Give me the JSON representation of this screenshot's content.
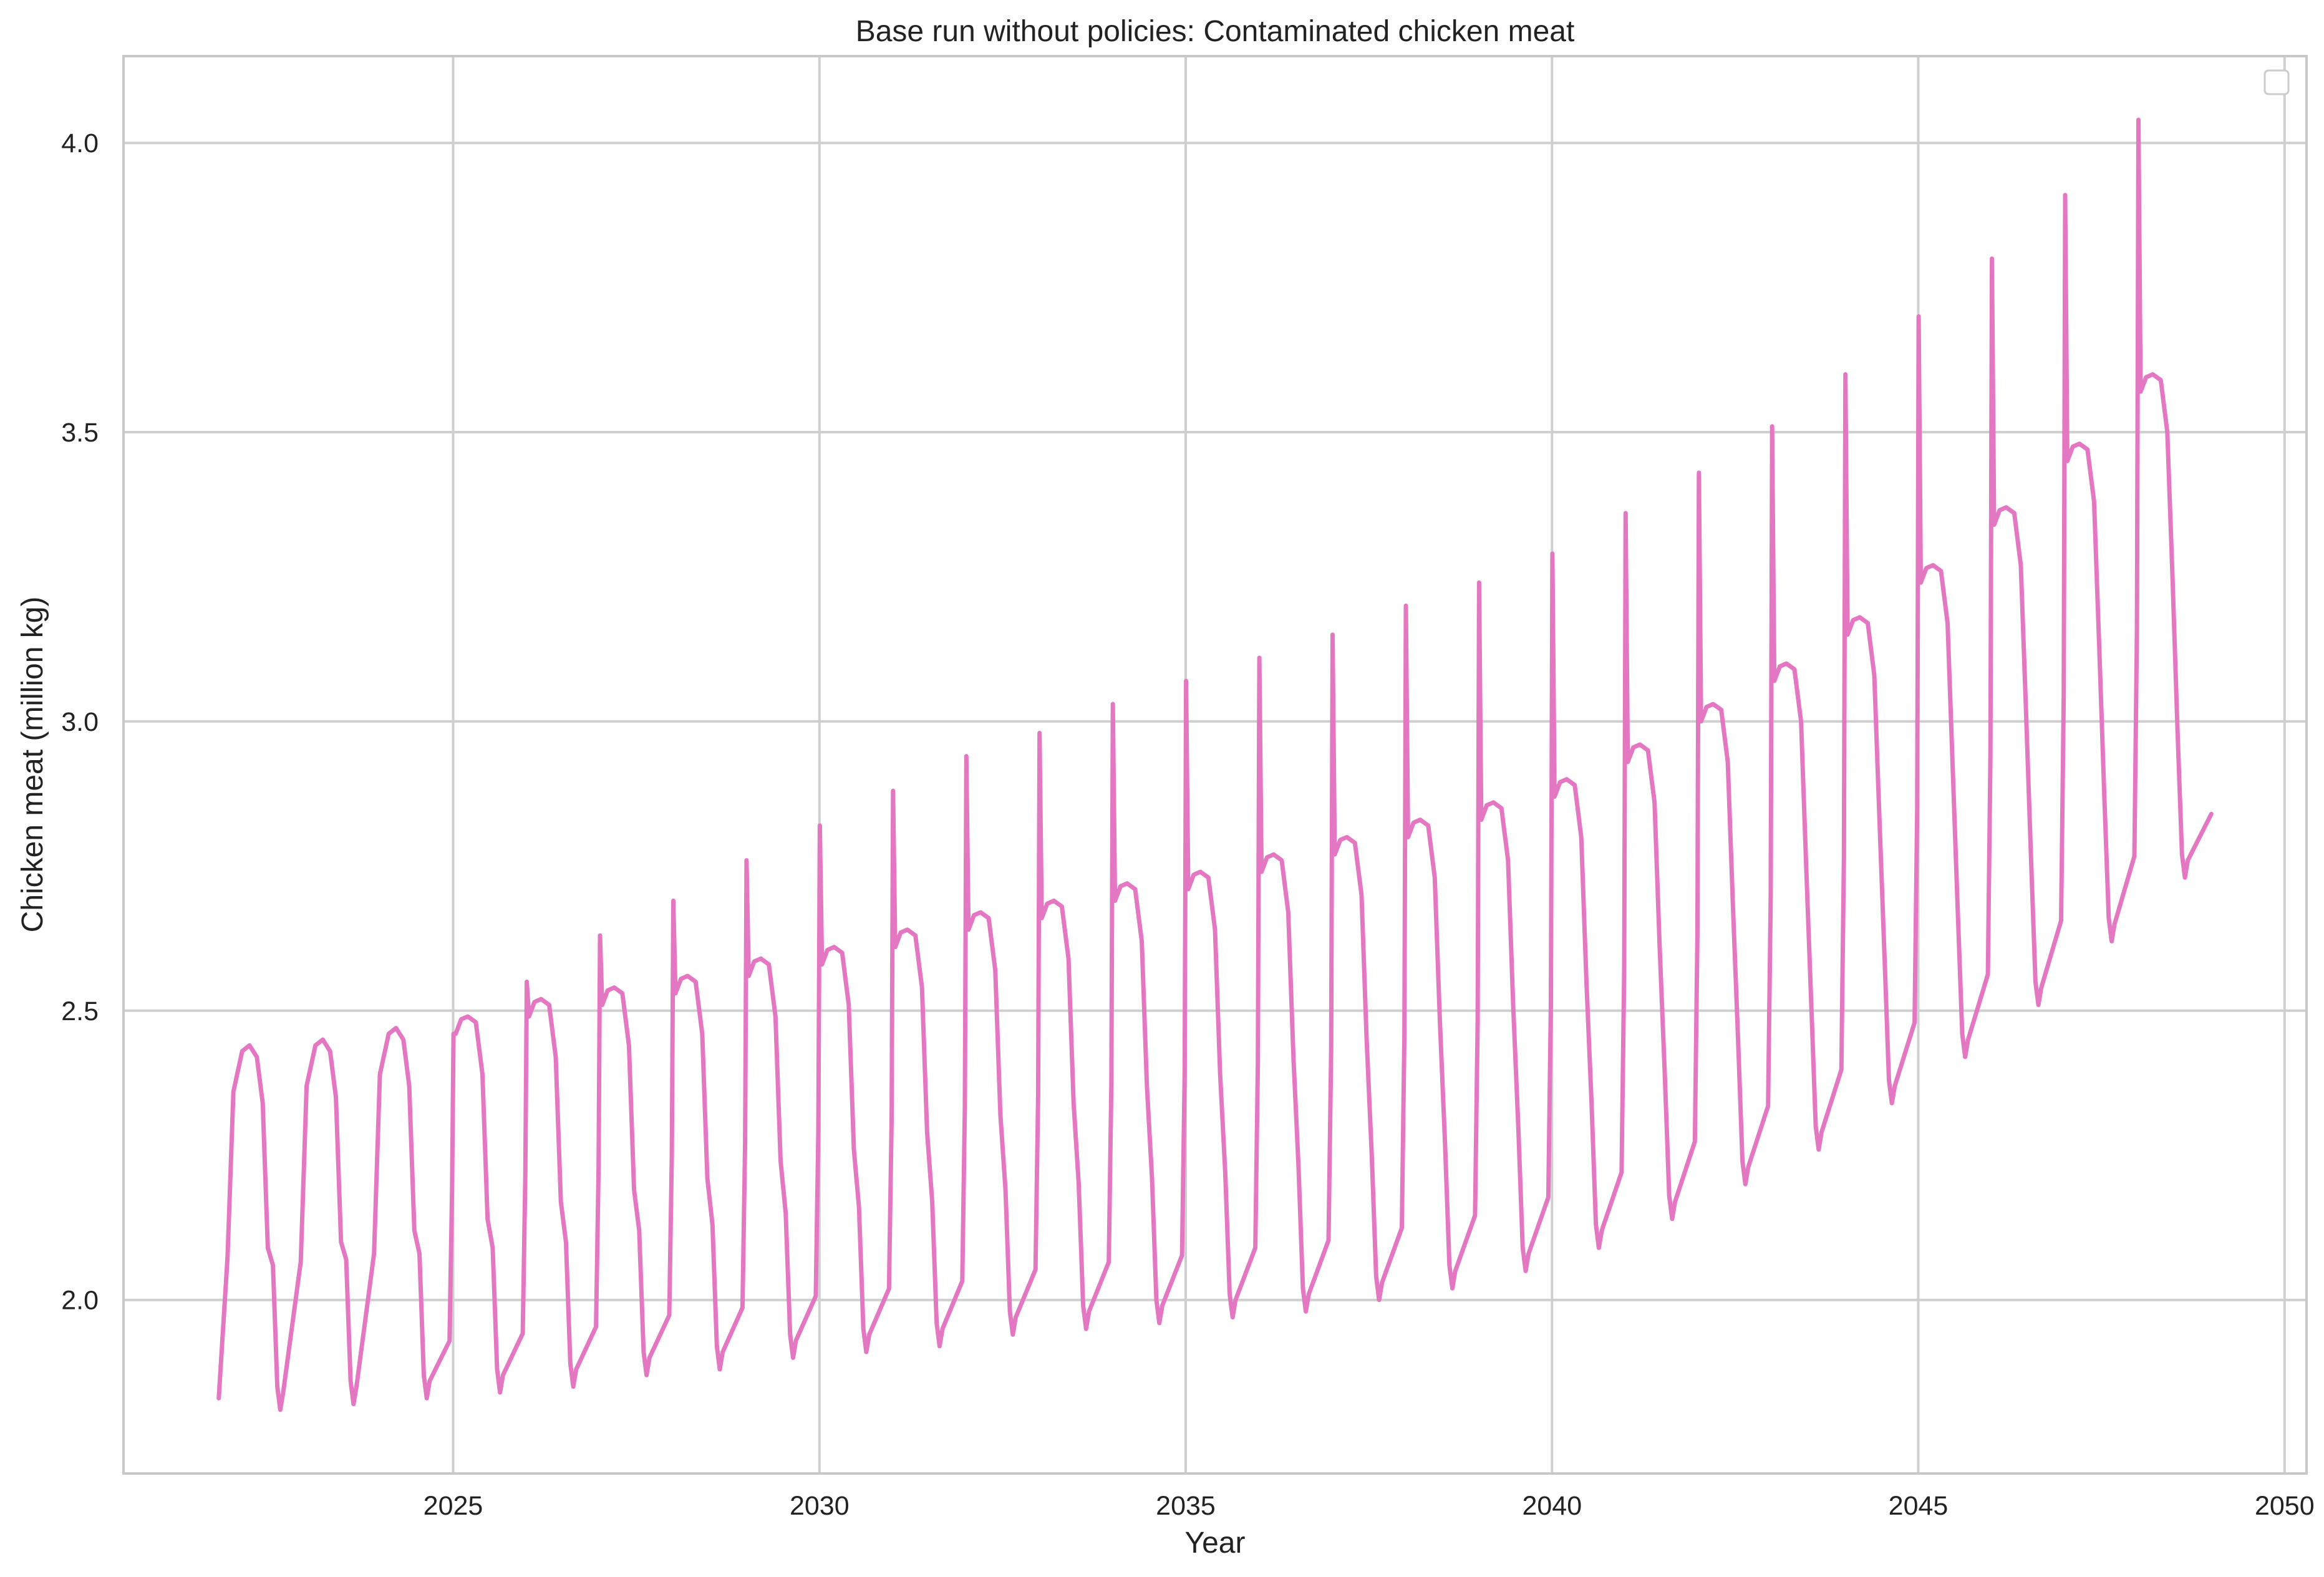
{
  "chart_data": {
    "type": "line",
    "title": "Base run without policies: Contaminated chicken meat",
    "xlabel": "Year",
    "ylabel": "Chicken meat (million kg)",
    "xlim": [
      2020.5,
      2050.3
    ],
    "ylim": [
      1.7,
      4.15
    ],
    "xticks": [
      2025,
      2030,
      2035,
      2040,
      2045,
      2050
    ],
    "xtick_labels": [
      "2025",
      "2030",
      "2035",
      "2040",
      "2045",
      "2050"
    ],
    "yticks": [
      2.0,
      2.5,
      3.0,
      3.5,
      4.0
    ],
    "ytick_labels": [
      "2.0",
      "2.5",
      "3.0",
      "3.5",
      "4.0"
    ],
    "grid": true,
    "legend": "top-right, empty",
    "line_color": "#e377c2",
    "x_range": [
      2021.8,
      2049.0
    ],
    "cycle_period_years": 1.0,
    "cycles": [
      {
        "year": 2022,
        "spike": null,
        "plateau": 2.44,
        "trough": 1.81
      },
      {
        "year": 2023,
        "spike": null,
        "plateau": 2.45,
        "trough": 1.82
      },
      {
        "year": 2024,
        "spike": null,
        "plateau": 2.47,
        "trough": 1.83
      },
      {
        "year": 2025,
        "spike": 2.46,
        "plateau": 2.49,
        "trough": 1.84
      },
      {
        "year": 2026,
        "spike": 2.55,
        "plateau": 2.52,
        "trough": 1.85
      },
      {
        "year": 2027,
        "spike": 2.63,
        "plateau": 2.54,
        "trough": 1.87
      },
      {
        "year": 2028,
        "spike": 2.69,
        "plateau": 2.56,
        "trough": 1.88
      },
      {
        "year": 2029,
        "spike": 2.76,
        "plateau": 2.59,
        "trough": 1.9
      },
      {
        "year": 2030,
        "spike": 2.82,
        "plateau": 2.61,
        "trough": 1.91
      },
      {
        "year": 2031,
        "spike": 2.88,
        "plateau": 2.64,
        "trough": 1.92
      },
      {
        "year": 2032,
        "spike": 2.94,
        "plateau": 2.67,
        "trough": 1.94
      },
      {
        "year": 2033,
        "spike": 2.98,
        "plateau": 2.69,
        "trough": 1.95
      },
      {
        "year": 2034,
        "spike": 3.03,
        "plateau": 2.72,
        "trough": 1.96
      },
      {
        "year": 2035,
        "spike": 3.07,
        "plateau": 2.74,
        "trough": 1.97
      },
      {
        "year": 2036,
        "spike": 3.11,
        "plateau": 2.77,
        "trough": 1.98
      },
      {
        "year": 2037,
        "spike": 3.15,
        "plateau": 2.8,
        "trough": 2.0
      },
      {
        "year": 2038,
        "spike": 3.2,
        "plateau": 2.83,
        "trough": 2.02
      },
      {
        "year": 2039,
        "spike": 3.24,
        "plateau": 2.86,
        "trough": 2.05
      },
      {
        "year": 2040,
        "spike": 3.29,
        "plateau": 2.9,
        "trough": 2.09
      },
      {
        "year": 2041,
        "spike": 3.36,
        "plateau": 2.96,
        "trough": 2.14
      },
      {
        "year": 2042,
        "spike": 3.43,
        "plateau": 3.03,
        "trough": 2.2
      },
      {
        "year": 2043,
        "spike": 3.51,
        "plateau": 3.1,
        "trough": 2.26
      },
      {
        "year": 2044,
        "spike": 3.6,
        "plateau": 3.18,
        "trough": 2.34
      },
      {
        "year": 2045,
        "spike": 3.7,
        "plateau": 3.27,
        "trough": 2.42
      },
      {
        "year": 2046,
        "spike": 3.8,
        "plateau": 3.37,
        "trough": 2.51
      },
      {
        "year": 2047,
        "spike": 3.91,
        "plateau": 3.48,
        "trough": 2.62
      },
      {
        "year": 2048,
        "spike": 4.04,
        "plateau": 3.6,
        "trough": 2.73
      }
    ],
    "start_point": {
      "x": 2021.8,
      "y": 1.83
    },
    "end_point": {
      "x": 2049.0,
      "y": 2.84
    }
  }
}
